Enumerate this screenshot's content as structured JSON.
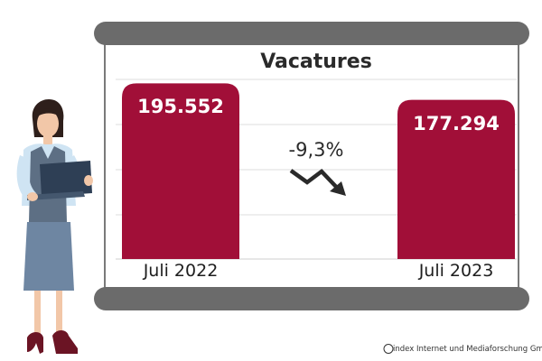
{
  "chart_data": {
    "type": "bar",
    "title": "Vacatures",
    "categories": [
      "Juli 2022",
      "Juli 2023"
    ],
    "values": [
      195552,
      177294
    ],
    "value_labels": [
      "195.552",
      "177.294"
    ],
    "change_label": "-9,3%",
    "ylim": [
      0,
      200000
    ],
    "grid": true,
    "legend": "none",
    "bar_color": "#a10f38"
  },
  "colors": {
    "frame_gray": "#6b6b6b",
    "bar": "#a10f38",
    "arrow": "#2a2a2a"
  },
  "icons": [
    "downward-trend-arrow-icon",
    "copyright-icon",
    "woman-with-laptop-illustration"
  ],
  "credit": "© index  Internet und Mediaforschung GmbH"
}
